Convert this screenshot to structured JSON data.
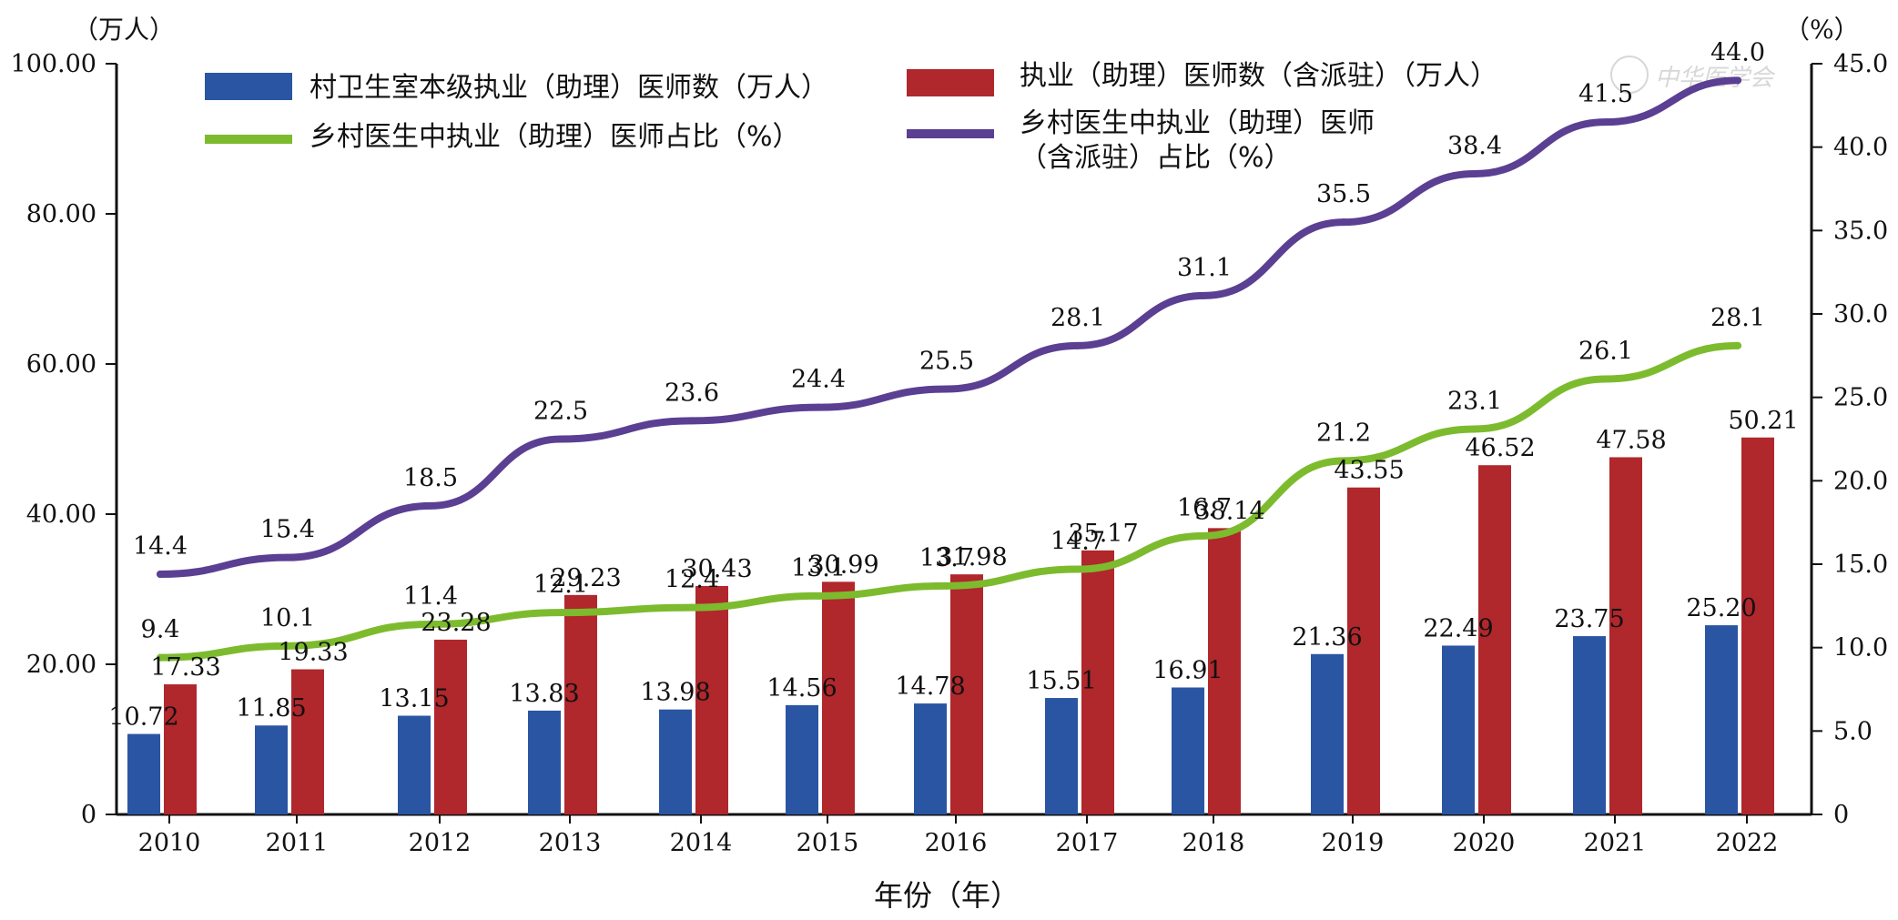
{
  "chart_data": {
    "type": "bar",
    "categories": [
      "2010",
      "2011",
      "2012",
      "2013",
      "2014",
      "2015",
      "2016",
      "2017",
      "2018",
      "2019",
      "2020",
      "2021",
      "2022"
    ],
    "xlabel": "年份（年）",
    "y_left": {
      "unit": "（万人）",
      "range": [
        0,
        100
      ],
      "ticks": [
        0,
        20,
        40,
        60,
        80,
        100
      ],
      "tick_labels": [
        "0",
        "20.00",
        "40.00",
        "60.00",
        "80.00",
        "100.00"
      ]
    },
    "y_right": {
      "unit": "（%）",
      "range": [
        0,
        45
      ],
      "ticks": [
        0,
        5,
        10,
        15,
        20,
        25,
        30,
        35,
        40,
        45
      ],
      "tick_labels": [
        "0",
        "5.0",
        "10.0",
        "15.0",
        "20.0",
        "25.0",
        "30.0",
        "35.0",
        "40.0",
        "45.0"
      ]
    },
    "series": [
      {
        "name": "村卫生室本级执业（助理）医师数（万人）",
        "type": "bar",
        "axis": "left",
        "color": "#2a55a3",
        "values": [
          10.72,
          11.85,
          13.15,
          13.83,
          13.98,
          14.56,
          14.78,
          15.51,
          16.91,
          21.36,
          22.49,
          23.75,
          25.2
        ],
        "labels": [
          "10.72",
          "11.85",
          "13.15",
          "13.83",
          "13.98",
          "14.56",
          "14.78",
          "15.51",
          "16.91",
          "21.36",
          "22.49",
          "23.75",
          "25.20"
        ]
      },
      {
        "name": "执业（助理）医师数（含派驻）（万人）",
        "type": "bar",
        "axis": "left",
        "color": "#b0272c",
        "values": [
          17.33,
          19.33,
          23.28,
          29.23,
          30.43,
          30.99,
          31.98,
          35.17,
          38.14,
          43.55,
          46.52,
          47.58,
          50.21
        ],
        "labels": [
          "17.33",
          "19.33",
          "23.28",
          "29.23",
          "30.43",
          "30.99",
          "31.98",
          "35.17",
          "38.14",
          "43.55",
          "46.52",
          "47.58",
          "50.21"
        ]
      },
      {
        "name": "乡村医生中执业（助理）医师占比（%）",
        "type": "line",
        "axis": "right",
        "color": "#7dbb2e",
        "values": [
          9.4,
          10.1,
          11.4,
          12.1,
          12.4,
          13.1,
          13.7,
          14.7,
          16.7,
          21.2,
          23.1,
          26.1,
          28.1
        ],
        "labels": [
          "9.4",
          "10.1",
          "11.4",
          "12.1",
          "12.4",
          "13.1",
          "13.7",
          "14.7",
          "16.7",
          "21.2",
          "23.1",
          "26.1",
          "28.1"
        ]
      },
      {
        "name_lines": [
          "乡村医生中执业（助理）医师",
          "（含派驻）占比（%）"
        ],
        "type": "line",
        "axis": "right",
        "color": "#5b3f92",
        "values": [
          14.4,
          15.4,
          18.5,
          22.5,
          23.6,
          24.4,
          25.5,
          28.1,
          31.1,
          35.5,
          38.4,
          41.5,
          44.0
        ],
        "labels": [
          "14.4",
          "15.4",
          "18.5",
          "22.5",
          "23.6",
          "24.4",
          "25.5",
          "28.1",
          "31.1",
          "35.5",
          "38.4",
          "41.5",
          "44.0"
        ]
      }
    ],
    "legend_position": "top",
    "grid": false
  },
  "watermark": "中华医学会"
}
